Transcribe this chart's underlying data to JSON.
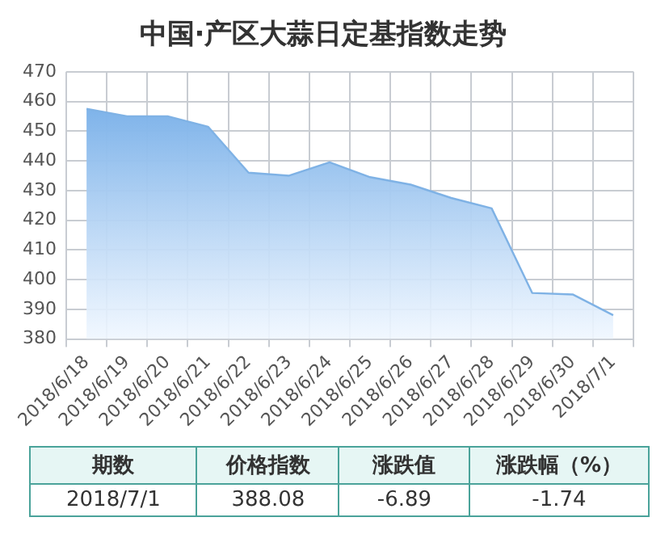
{
  "chart_data": {
    "type": "area",
    "title": "中国·产区大蒜日定基指数走势",
    "categories": [
      "2018/6/18",
      "2018/6/19",
      "2018/6/20",
      "2018/6/21",
      "2018/6/22",
      "2018/6/23",
      "2018/6/24",
      "2018/6/25",
      "2018/6/26",
      "2018/6/27",
      "2018/6/28",
      "2018/6/29",
      "2018/6/30",
      "2018/7/1"
    ],
    "series": [
      {
        "color": "#7fb2e5",
        "values": [
          457.5,
          455,
          455,
          451.5,
          436,
          435,
          439.5,
          434.5,
          432,
          427.5,
          424,
          395.5,
          395,
          388
        ]
      }
    ],
    "ylim": [
      380,
      470
    ],
    "yticks": [
      380,
      390,
      400,
      410,
      420,
      430,
      440,
      450,
      460,
      470
    ],
    "grid": true,
    "legend": false,
    "marker": "none",
    "annotations": [
      "期数",
      "价格指数",
      "涨跌值",
      "涨跌幅（%）",
      "2018/7/1",
      "388.08",
      "-6.89",
      "-1.74"
    ]
  }
}
